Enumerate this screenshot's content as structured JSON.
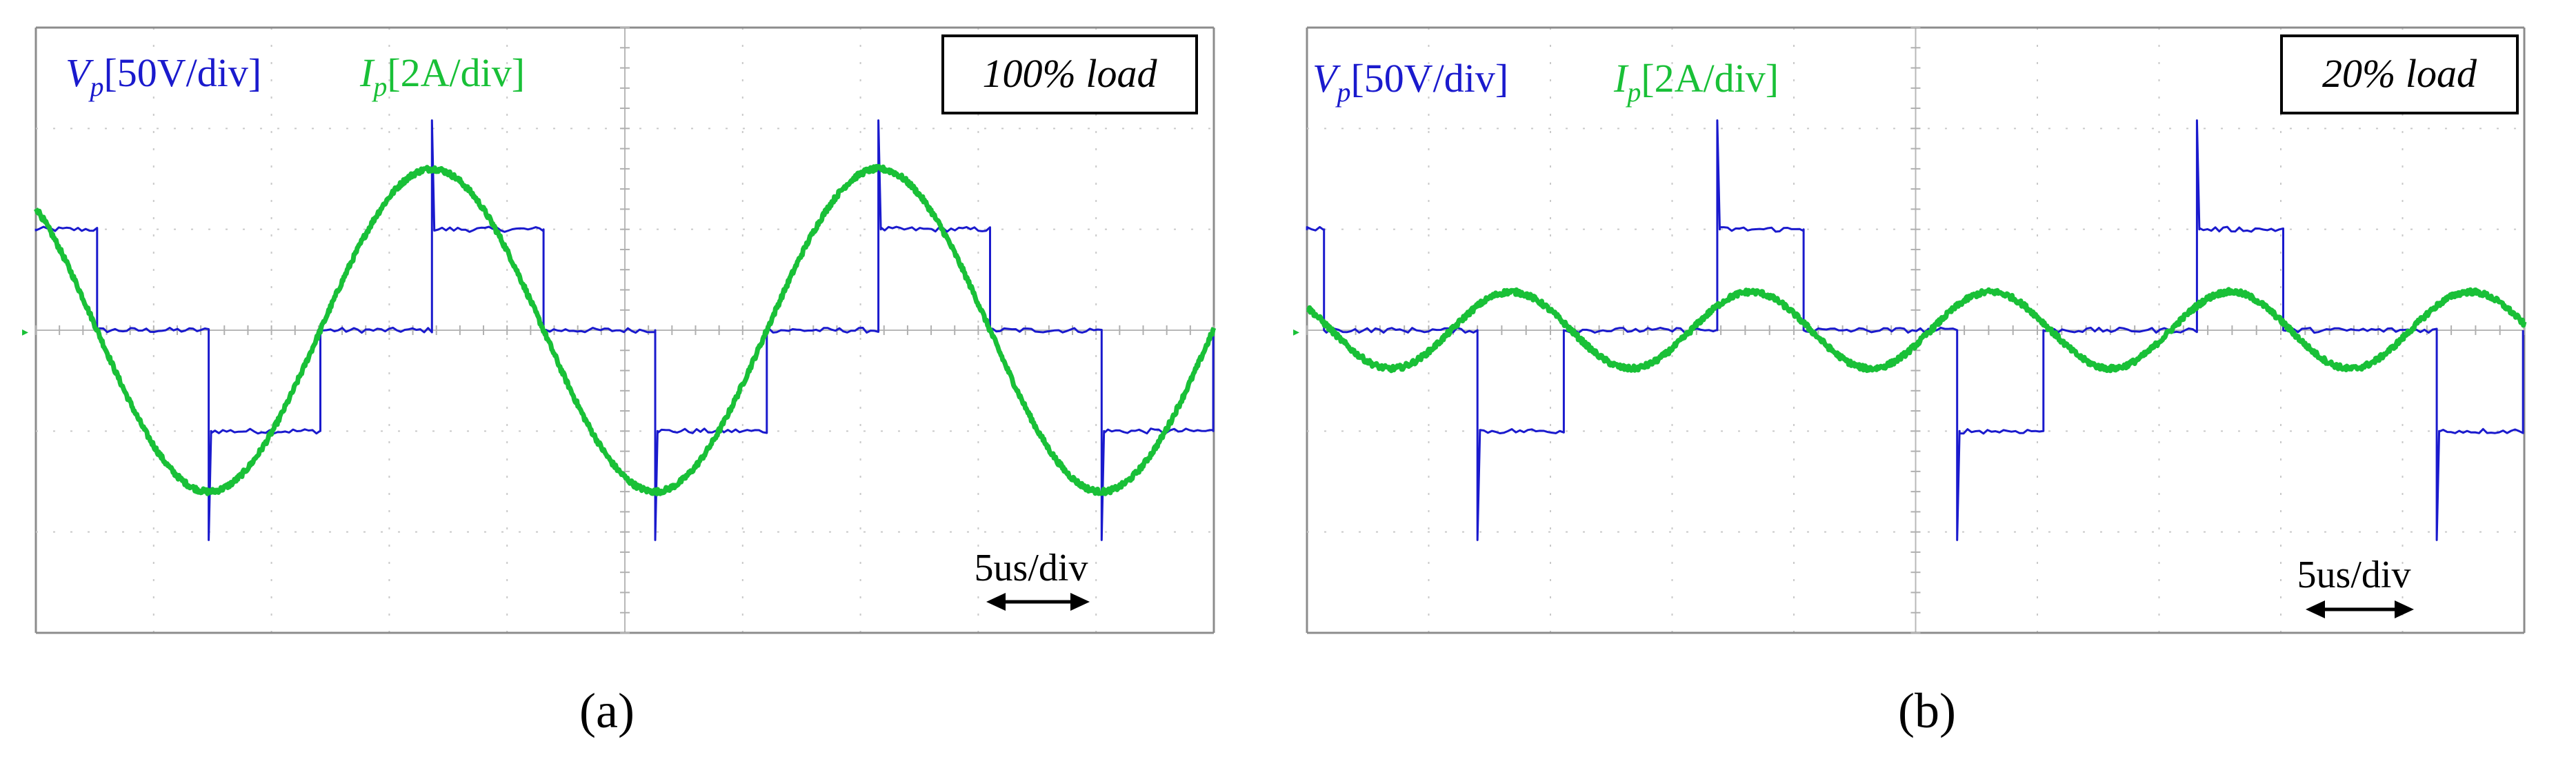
{
  "chart_data": [
    {
      "type": "line",
      "panel_label": "(a)",
      "load_label": "100% load",
      "legend": {
        "v_symbol": "V",
        "v_sub": "p",
        "v_scale": "[50V/div]",
        "i_symbol": "I",
        "i_sub": "p",
        "i_scale": "[2A/div]"
      },
      "time_scale_label": "5us/div",
      "divisions": {
        "x": 10,
        "y": 6
      },
      "series": [
        {
          "key": "vp",
          "color": "#1a1acd",
          "waveform": "three-level square",
          "amplitude_div": 1.0,
          "period_div": 3.79,
          "first_zero_div": 0.52,
          "step_fraction": 0.5,
          "spike_div": 1.2,
          "start_level_div": 1.0
        },
        {
          "key": "ip",
          "color": "#19c037",
          "waveform": "sine",
          "amplitude_div": 1.6,
          "period_div": 3.79,
          "first_zero_div": 0.52,
          "start_sign": 1
        }
      ]
    },
    {
      "type": "line",
      "panel_label": "(b)",
      "load_label": "20% load",
      "legend": {
        "v_symbol": "V",
        "v_sub": "p",
        "v_scale": "[50V/div]",
        "i_symbol": "I",
        "i_sub": "p",
        "i_scale": "[2A/div]"
      },
      "time_scale_label": "5us/div",
      "divisions": {
        "x": 10,
        "y": 6
      },
      "series": [
        {
          "key": "vp",
          "color": "#1a1acd",
          "waveform": "three-level square",
          "amplitude_div": 1.0,
          "period_div": 3.94,
          "first_zero_div": 0.14,
          "step_fraction": 0.25,
          "spike_div": 1.2,
          "start_level_div": 1.0
        },
        {
          "key": "ip",
          "color": "#19c037",
          "waveform": "sine",
          "amplitude_div": 0.38,
          "period_div": 1.97,
          "first_zero_div": 0.2,
          "start_sign": 1
        }
      ]
    }
  ]
}
